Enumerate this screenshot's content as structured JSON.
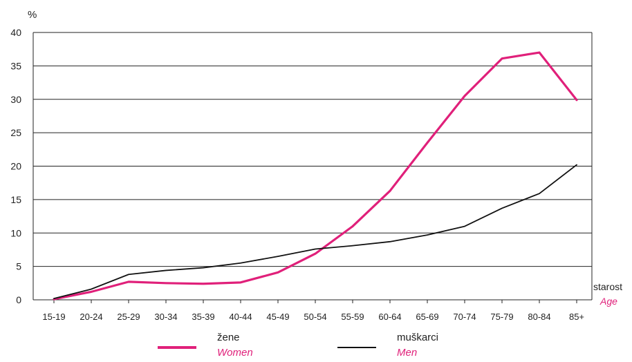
{
  "chart_data": {
    "type": "line",
    "ylabel": "%",
    "xlabel": "starost",
    "xlabel_en": "Age",
    "ylim": [
      0,
      40
    ],
    "yticks": [
      0,
      5,
      10,
      15,
      20,
      25,
      30,
      35,
      40
    ],
    "grid": true,
    "legend_position": "bottom",
    "categories": [
      "15-19",
      "20-24",
      "25-29",
      "30-34",
      "35-39",
      "40-44",
      "45-49",
      "50-54",
      "55-59",
      "60-64",
      "65-69",
      "70-74",
      "75-79",
      "80-84",
      "85+"
    ],
    "series": [
      {
        "name": "žene",
        "name_en": "Women",
        "color": "#e0207a",
        "values": [
          0.1,
          1.2,
          2.7,
          2.5,
          2.4,
          2.6,
          4.1,
          6.9,
          11.0,
          16.3,
          23.5,
          30.5,
          36.1,
          37.0,
          29.9
        ]
      },
      {
        "name": "muškarci",
        "name_en": "Men",
        "color": "#111111",
        "values": [
          0.2,
          1.6,
          3.8,
          4.4,
          4.8,
          5.5,
          6.5,
          7.6,
          8.1,
          8.7,
          9.7,
          11.0,
          13.7,
          15.9,
          20.2
        ]
      }
    ]
  },
  "colors": {
    "accent": "#e0207a",
    "grid": "#222222"
  }
}
